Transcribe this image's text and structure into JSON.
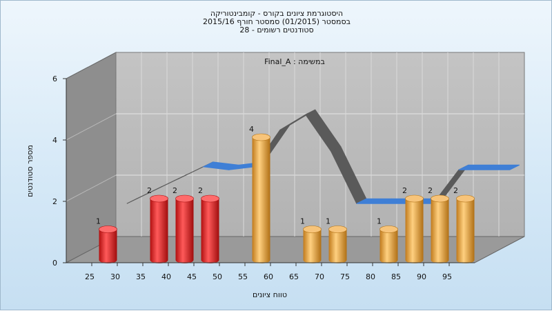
{
  "chart_data": {
    "type": "bar",
    "title": [
      "היסטוגרמת ציונים בקורס - קומבינטוריקה",
      "בסמסטר (01/2015) סמסטר חורף 2015/16",
      "סטודנטים רשומים - 28"
    ],
    "annotation": "במשימה : Final_A",
    "xlabel": "טווח ציונים",
    "ylabel": "מספר סטודנטים",
    "x_ticks": [
      "25",
      "30",
      "35",
      "40",
      "45",
      "50",
      "55",
      "60",
      "65",
      "70",
      "75",
      "80",
      "85",
      "90",
      "95"
    ],
    "y_ticks": [
      "0",
      "2",
      "4",
      "6"
    ],
    "ylim": [
      0,
      6
    ],
    "categories": [
      "25",
      "35",
      "40",
      "45",
      "55",
      "65",
      "70",
      "80",
      "85",
      "90",
      "95"
    ],
    "values": [
      1,
      2,
      2,
      2,
      4,
      1,
      1,
      1,
      2,
      2,
      2
    ],
    "bar_colors": [
      "#e0221f",
      "#e0221f",
      "#e0221f",
      "#e0221f",
      "#e8a23a",
      "#e8a23a",
      "#e8a23a",
      "#e8a23a",
      "#e8a23a",
      "#e8a23a",
      "#e8a23a"
    ],
    "trend": {
      "x": [
        27,
        32,
        37,
        42,
        47,
        52,
        57,
        62,
        67,
        72,
        77,
        82,
        87,
        92,
        97,
        102
      ],
      "y": [
        1.5,
        1.9,
        2.3,
        2.7,
        2.6,
        2.7,
        3.9,
        4.4,
        3.2,
        1.5,
        1.5,
        1.5,
        1.5,
        2.6,
        2.6,
        2.6
      ]
    },
    "grid": true,
    "legend": "none"
  }
}
